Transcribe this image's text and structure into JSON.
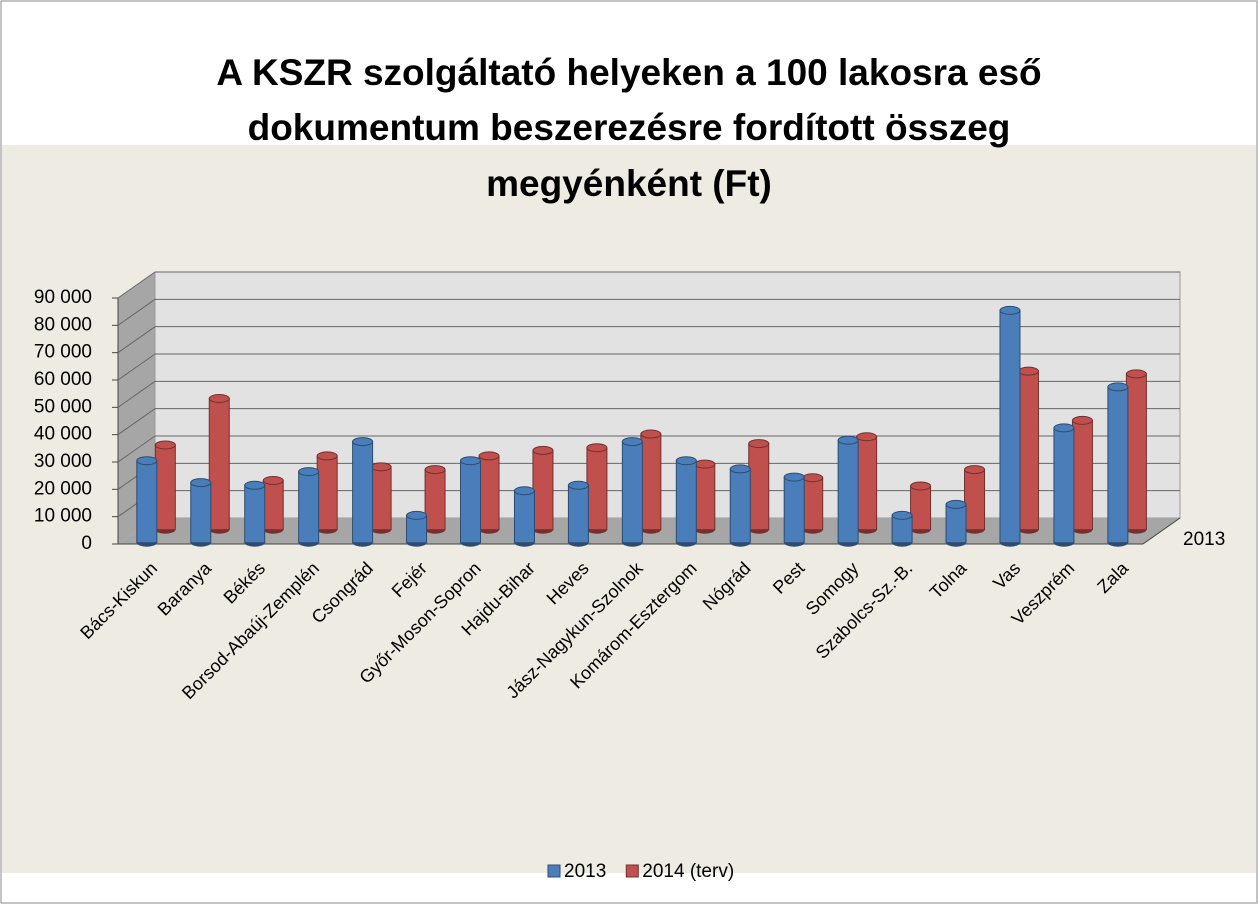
{
  "chart_data": {
    "type": "bar",
    "title": [
      "A KSZR szolgáltató helyeken a 100 lakosra eső",
      "dokumentum beszerezésre fordított összeg",
      "megyénként (Ft)"
    ],
    "categories": [
      "Bács-Kiskun",
      "Baranya",
      "Békés",
      "Borsod-Abaúj-Zemplén",
      "Csongrád",
      "Fejér",
      "Győr-Moson-Sopron",
      "Hajdu-Bihar",
      "Heves",
      "Jász-Nagykun-Szolnok",
      "Komárom-Esztergom",
      "Nógrád",
      "Pest",
      "Somogy",
      "Szabolcs-Sz.-B.",
      "Tolna",
      "Vas",
      "Veszprém",
      "Zala"
    ],
    "series": [
      {
        "name": "2013",
        "color": "#4a7ebb",
        "values": [
          30000,
          22000,
          21000,
          26000,
          37000,
          10000,
          30000,
          19000,
          21000,
          37000,
          30000,
          27000,
          24000,
          37500,
          10000,
          14000,
          85000,
          42000,
          57000
        ]
      },
      {
        "name": "2014 (terv)",
        "color": "#c0504d",
        "values": [
          31000,
          48000,
          18000,
          27000,
          23000,
          22000,
          27000,
          29000,
          30000,
          35000,
          24000,
          31500,
          19000,
          34000,
          16000,
          22000,
          58000,
          40000,
          57000
        ]
      }
    ],
    "depth_label": "2013",
    "ylim": [
      0,
      90000
    ],
    "yticks": [
      0,
      {
        "value": 10000,
        "label": "10 000"
      },
      {
        "value": 20000,
        "label": "20 000"
      },
      {
        "value": 30000,
        "label": "30 000"
      },
      {
        "value": 40000,
        "label": "40 000"
      },
      {
        "value": 50000,
        "label": "50 000"
      },
      {
        "value": 60000,
        "label": "60 000"
      },
      {
        "value": 70000,
        "label": "70 000"
      },
      {
        "value": 80000,
        "label": "80 000"
      },
      {
        "value": 90000,
        "label": "90 000"
      }
    ],
    "grid": true,
    "legend": "bottom"
  }
}
